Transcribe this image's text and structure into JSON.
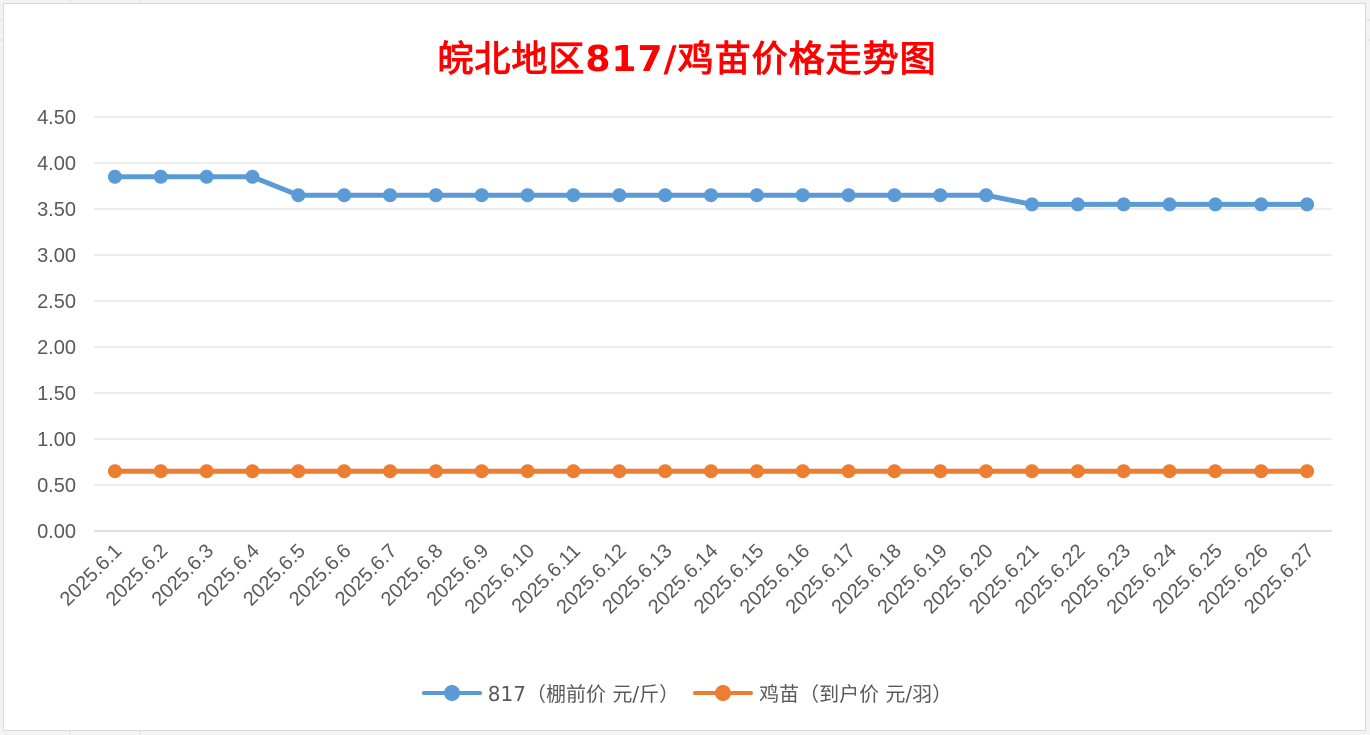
{
  "chart_data": {
    "type": "line",
    "title": "皖北地区817/鸡苗价格走势图",
    "categories": [
      "2025.6.1",
      "2025.6.2",
      "2025.6.3",
      "2025.6.4",
      "2025.6.5",
      "2025.6.6",
      "2025.6.7",
      "2025.6.8",
      "2025.6.9",
      "2025.6.10",
      "2025.6.11",
      "2025.6.12",
      "2025.6.13",
      "2025.6.14",
      "2025.6.15",
      "2025.6.16",
      "2025.6.17",
      "2025.6.18",
      "2025.6.19",
      "2025.6.20",
      "2025.6.21",
      "2025.6.22",
      "2025.6.23",
      "2025.6.24",
      "2025.6.25",
      "2025.6.26",
      "2025.6.27"
    ],
    "series": [
      {
        "name": "817（棚前价 元/斤）",
        "color": "#5b9bd5",
        "values": [
          3.85,
          3.85,
          3.85,
          3.85,
          3.65,
          3.65,
          3.65,
          3.65,
          3.65,
          3.65,
          3.65,
          3.65,
          3.65,
          3.65,
          3.65,
          3.65,
          3.65,
          3.65,
          3.65,
          3.65,
          3.55,
          3.55,
          3.55,
          3.55,
          3.55,
          3.55,
          3.55
        ]
      },
      {
        "name": "鸡苗（到户价 元/羽）",
        "color": "#ed7d31",
        "values": [
          0.65,
          0.65,
          0.65,
          0.65,
          0.65,
          0.65,
          0.65,
          0.65,
          0.65,
          0.65,
          0.65,
          0.65,
          0.65,
          0.65,
          0.65,
          0.65,
          0.65,
          0.65,
          0.65,
          0.65,
          0.65,
          0.65,
          0.65,
          0.65,
          0.65,
          0.65,
          0.65
        ]
      }
    ],
    "yticks": [
      "0.00",
      "0.50",
      "1.00",
      "1.50",
      "2.00",
      "2.50",
      "3.00",
      "3.50",
      "4.00",
      "4.50"
    ],
    "ylim": [
      0,
      4.5
    ],
    "grid": true,
    "legend": "bottom"
  }
}
